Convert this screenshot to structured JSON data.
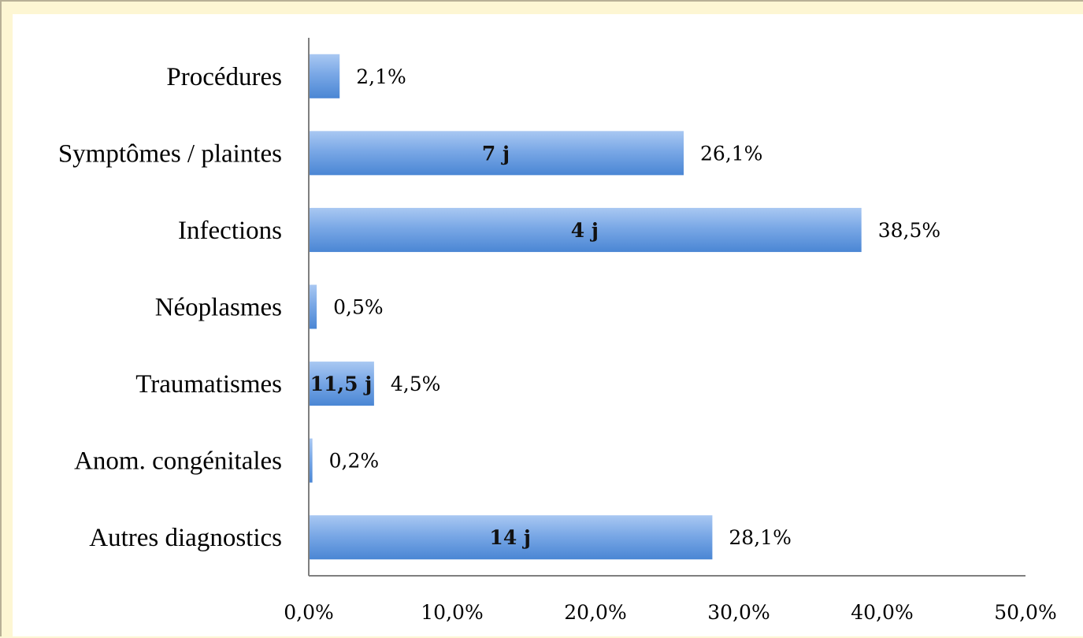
{
  "chart_data": {
    "type": "bar",
    "orientation": "horizontal",
    "categories": [
      "Procédures",
      "Symptômes / plaintes",
      "Infections",
      "Néoplasmes",
      "Traumatismes",
      "Anom. congénitales",
      "Autres diagnostics"
    ],
    "values": [
      2.1,
      26.1,
      38.5,
      0.5,
      4.5,
      0.2,
      28.1
    ],
    "value_labels": [
      "2,1%",
      "26,1%",
      "38,5%",
      "0,5%",
      "4,5%",
      "0,2%",
      "28,1%"
    ],
    "inner_labels": [
      "",
      "7 j",
      "4 j",
      "",
      "11,5 j",
      "",
      "14 j"
    ],
    "x_ticks": [
      0,
      10,
      20,
      30,
      40,
      50
    ],
    "x_tick_labels": [
      "0,0%",
      "10,0%",
      "20,0%",
      "30,0%",
      "40,0%",
      "50,0%"
    ],
    "xlim": [
      0,
      50
    ],
    "grid": false,
    "colors": {
      "bar_light": "#a9c8f2",
      "bar_dark": "#4a86d4",
      "axis": "#7f7f7f",
      "background": "#ffffff",
      "frame": "#fdf6d3"
    }
  }
}
